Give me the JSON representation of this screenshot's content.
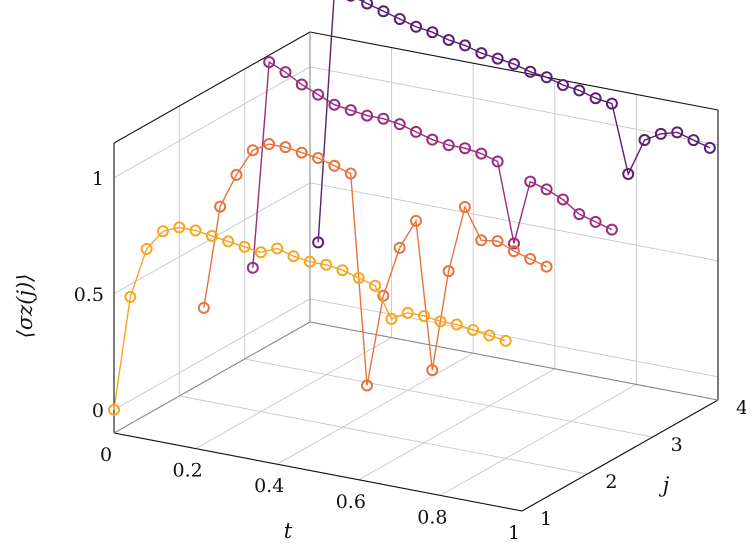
{
  "chart_data": {
    "type": "line",
    "view": "3d",
    "xlabel": "t",
    "ylabel": "j",
    "zlabel": "⟨σz(j)⟩",
    "xlim": [
      0,
      1
    ],
    "ylim": [
      1,
      4
    ],
    "zlim": [
      -0.1,
      1.15
    ],
    "x_ticks": [
      "0",
      "0.2",
      "0.4",
      "0.6",
      "0.8",
      "1"
    ],
    "y_ticks": [
      "1",
      "2",
      "3",
      "4"
    ],
    "z_ticks": [
      "0",
      "0.5",
      "1"
    ],
    "grid": true,
    "legend": "none",
    "series": [
      {
        "j": 1,
        "color": "#F5A623",
        "t": [
          0,
          0.04,
          0.08,
          0.12,
          0.16,
          0.2,
          0.24,
          0.28,
          0.32,
          0.36,
          0.4,
          0.44,
          0.48,
          0.52,
          0.56,
          0.6,
          0.64,
          0.68,
          0.72,
          0.76,
          0.8,
          0.84,
          0.88,
          0.92,
          0.96
        ],
        "value": [
          0,
          0.5,
          0.72,
          0.81,
          0.84,
          0.84,
          0.83,
          0.82,
          0.81,
          0.8,
          0.83,
          0.81,
          0.8,
          0.8,
          0.79,
          0.77,
          0.75,
          0.62,
          0.66,
          0.66,
          0.65,
          0.65,
          0.64,
          0.63,
          0.62
        ]
      },
      {
        "j": 2,
        "color": "#E8743B",
        "t": [
          0.06,
          0.1,
          0.14,
          0.18,
          0.22,
          0.26,
          0.3,
          0.34,
          0.38,
          0.42,
          0.46,
          0.5,
          0.54,
          0.58,
          0.62,
          0.66,
          0.7,
          0.74,
          0.78,
          0.82,
          0.86,
          0.9
        ],
        "value": [
          0.3,
          0.75,
          0.9,
          1.02,
          1.06,
          1.06,
          1.05,
          1.04,
          1.02,
          1.0,
          0.1,
          0.5,
          0.72,
          0.85,
          0.22,
          0.66,
          0.95,
          0.82,
          0.83,
          0.8,
          0.78,
          0.76
        ]
      },
      {
        "j": 3,
        "color": "#9B2D7F",
        "t": [
          0.02,
          0.06,
          0.1,
          0.14,
          0.18,
          0.22,
          0.26,
          0.3,
          0.34,
          0.38,
          0.42,
          0.46,
          0.5,
          0.54,
          0.58,
          0.62,
          0.66,
          0.7,
          0.74,
          0.78,
          0.82,
          0.86,
          0.9
        ],
        "value": [
          0.3,
          1.2,
          1.17,
          1.13,
          1.1,
          1.07,
          1.06,
          1.05,
          1.05,
          1.04,
          1.02,
          1.0,
          0.99,
          0.99,
          0.98,
          0.96,
          0.62,
          0.9,
          0.88,
          0.85,
          0.8,
          0.78,
          0.76
        ]
      },
      {
        "j": 4,
        "color": "#5B1F73",
        "t": [
          0.02,
          0.06,
          0.1,
          0.14,
          0.18,
          0.22,
          0.26,
          0.3,
          0.34,
          0.38,
          0.42,
          0.46,
          0.5,
          0.54,
          0.58,
          0.62,
          0.66,
          0.7,
          0.74,
          0.78,
          0.82,
          0.86,
          0.9,
          0.94,
          0.98
        ],
        "value": [
          0.25,
          1.35,
          1.34,
          1.32,
          1.3,
          1.28,
          1.26,
          1.25,
          1.23,
          1.22,
          1.2,
          1.19,
          1.18,
          1.16,
          1.15,
          1.13,
          1.12,
          1.1,
          1.09,
          0.8,
          0.96,
          1.0,
          1.02,
          1.0,
          0.98
        ]
      }
    ]
  }
}
